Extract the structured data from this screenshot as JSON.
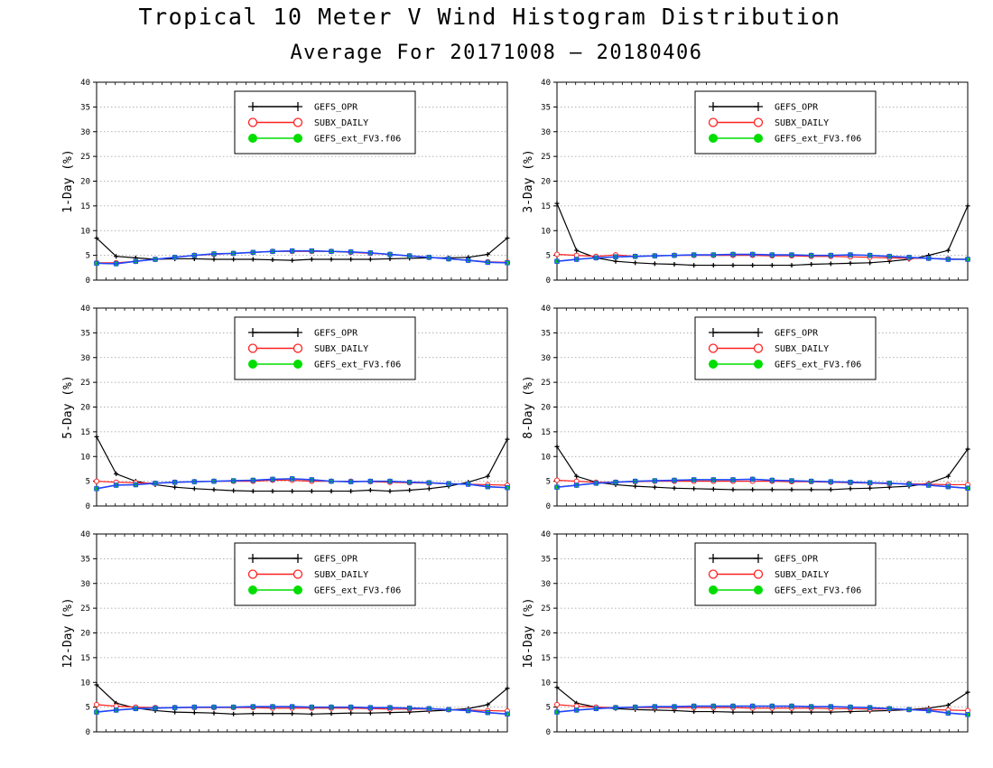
{
  "title": "Tropical 10 Meter V Wind Histogram Distribution",
  "subtitle": "Average For 20171008 – 20180406",
  "colors": {
    "GEFS_OPR": "#000000",
    "SUBX_DAILY": "#ff2020",
    "GEFS_ext_FV3.f06": "#00dd00",
    "overlay_blue": "#2244ff",
    "grid": "#999999"
  },
  "chart_data": [
    {
      "type": "line",
      "ylabel": "1-Day (%)",
      "ylim": [
        0,
        40
      ],
      "yticks": [
        0,
        5,
        10,
        15,
        20,
        25,
        30,
        35,
        40
      ],
      "grid": "horizontal dotted",
      "legend_placement": "top-center",
      "x": [
        1,
        2,
        3,
        4,
        5,
        6,
        7,
        8,
        9,
        10,
        11,
        12,
        13,
        14,
        15,
        16,
        17,
        18,
        19,
        20,
        21,
        22
      ],
      "series": [
        {
          "name": "GEFS_OPR",
          "marker": "plus",
          "values": [
            8.5,
            4.8,
            4.5,
            4.2,
            4.3,
            4.3,
            4.2,
            4.2,
            4.2,
            4.1,
            4.0,
            4.2,
            4.2,
            4.2,
            4.2,
            4.3,
            4.4,
            4.5,
            4.5,
            4.6,
            5.2,
            8.5
          ]
        },
        {
          "name": "SUBX_DAILY",
          "marker": "open-circle",
          "values": [
            3.5,
            3.5,
            3.8,
            4.2,
            4.6,
            5.0,
            5.2,
            5.4,
            5.6,
            5.8,
            5.8,
            5.8,
            5.8,
            5.6,
            5.4,
            5.2,
            4.9,
            4.6,
            4.3,
            4.0,
            3.7,
            3.6
          ]
        },
        {
          "name": "GEFS_ext_FV3.f06",
          "marker": "filled-circle",
          "values": [
            3.4,
            3.3,
            3.8,
            4.2,
            4.6,
            5.0,
            5.3,
            5.4,
            5.6,
            5.8,
            5.9,
            5.9,
            5.8,
            5.7,
            5.5,
            5.2,
            4.9,
            4.6,
            4.3,
            4.0,
            3.6,
            3.5
          ]
        }
      ],
      "overlay": [
        3.4,
        3.3,
        3.8,
        4.2,
        4.6,
        5.0,
        5.3,
        5.4,
        5.6,
        5.8,
        5.9,
        5.9,
        5.8,
        5.7,
        5.5,
        5.2,
        4.9,
        4.6,
        4.3,
        4.0,
        3.6,
        3.5
      ]
    },
    {
      "type": "line",
      "ylabel": "3-Day (%)",
      "ylim": [
        0,
        40
      ],
      "yticks": [
        0,
        5,
        10,
        15,
        20,
        25,
        30,
        35,
        40
      ],
      "grid": "horizontal dotted",
      "legend_placement": "top-center",
      "x": [
        1,
        2,
        3,
        4,
        5,
        6,
        7,
        8,
        9,
        10,
        11,
        12,
        13,
        14,
        15,
        16,
        17,
        18,
        19,
        20,
        21,
        22
      ],
      "series": [
        {
          "name": "GEFS_OPR",
          "marker": "plus",
          "values": [
            15.5,
            6.0,
            4.5,
            3.8,
            3.5,
            3.3,
            3.2,
            3.0,
            3.0,
            3.0,
            3.0,
            3.0,
            3.0,
            3.2,
            3.3,
            3.4,
            3.5,
            3.8,
            4.2,
            5.0,
            6.0,
            15.0
          ]
        },
        {
          "name": "SUBX_DAILY",
          "marker": "open-circle",
          "values": [
            5.2,
            5.0,
            4.8,
            5.1,
            4.8,
            4.9,
            5.0,
            5.0,
            5.0,
            5.0,
            5.0,
            4.9,
            4.9,
            4.8,
            4.8,
            4.7,
            4.6,
            4.5,
            4.4,
            4.4,
            4.3,
            4.2
          ]
        },
        {
          "name": "GEFS_ext_FV3.f06",
          "marker": "filled-circle",
          "values": [
            3.8,
            4.2,
            4.5,
            4.7,
            4.8,
            4.9,
            5.0,
            5.1,
            5.1,
            5.2,
            5.2,
            5.1,
            5.1,
            5.0,
            5.0,
            5.1,
            5.0,
            4.8,
            4.6,
            4.4,
            4.2,
            4.2
          ]
        }
      ],
      "overlay": [
        3.8,
        4.2,
        4.5,
        4.7,
        4.8,
        4.9,
        5.0,
        5.1,
        5.1,
        5.2,
        5.2,
        5.1,
        5.1,
        5.0,
        5.0,
        5.1,
        5.0,
        4.8,
        4.6,
        4.4,
        4.2,
        4.2
      ]
    },
    {
      "type": "line",
      "ylabel": "5-Day (%)",
      "ylim": [
        0,
        40
      ],
      "yticks": [
        0,
        5,
        10,
        15,
        20,
        25,
        30,
        35,
        40
      ],
      "grid": "horizontal dotted",
      "legend_placement": "top-center",
      "x": [
        1,
        2,
        3,
        4,
        5,
        6,
        7,
        8,
        9,
        10,
        11,
        12,
        13,
        14,
        15,
        16,
        17,
        18,
        19,
        20,
        21,
        22
      ],
      "series": [
        {
          "name": "GEFS_OPR",
          "marker": "plus",
          "values": [
            14.0,
            6.5,
            5.0,
            4.3,
            3.8,
            3.5,
            3.3,
            3.1,
            3.0,
            3.0,
            3.0,
            3.0,
            3.0,
            3.0,
            3.2,
            3.0,
            3.2,
            3.5,
            4.0,
            4.8,
            6.0,
            13.5
          ]
        },
        {
          "name": "SUBX_DAILY",
          "marker": "open-circle",
          "values": [
            5.0,
            4.8,
            4.7,
            4.6,
            4.8,
            4.9,
            5.0,
            5.0,
            5.0,
            5.2,
            5.2,
            5.0,
            5.0,
            5.0,
            4.9,
            4.8,
            4.7,
            4.6,
            4.5,
            4.4,
            4.3,
            4.2
          ]
        },
        {
          "name": "GEFS_ext_FV3.f06",
          "marker": "filled-circle",
          "values": [
            3.5,
            4.2,
            4.3,
            4.6,
            4.8,
            4.9,
            5.0,
            5.1,
            5.2,
            5.4,
            5.5,
            5.3,
            5.0,
            4.9,
            5.0,
            5.0,
            4.8,
            4.7,
            4.5,
            4.4,
            3.9,
            3.7
          ]
        }
      ],
      "overlay": [
        3.5,
        4.2,
        4.3,
        4.6,
        4.8,
        4.9,
        5.0,
        5.1,
        5.2,
        5.4,
        5.5,
        5.3,
        5.0,
        4.9,
        5.0,
        5.0,
        4.8,
        4.7,
        4.5,
        4.4,
        3.9,
        3.7
      ]
    },
    {
      "type": "line",
      "ylabel": "8-Day (%)",
      "ylim": [
        0,
        40
      ],
      "yticks": [
        0,
        5,
        10,
        15,
        20,
        25,
        30,
        35,
        40
      ],
      "grid": "horizontal dotted",
      "legend_placement": "top-center",
      "x": [
        1,
        2,
        3,
        4,
        5,
        6,
        7,
        8,
        9,
        10,
        11,
        12,
        13,
        14,
        15,
        16,
        17,
        18,
        19,
        20,
        21,
        22
      ],
      "series": [
        {
          "name": "GEFS_OPR",
          "marker": "plus",
          "values": [
            12.0,
            6.0,
            4.8,
            4.3,
            4.0,
            3.8,
            3.6,
            3.5,
            3.4,
            3.3,
            3.3,
            3.3,
            3.3,
            3.3,
            3.3,
            3.5,
            3.6,
            3.8,
            4.0,
            4.6,
            6.0,
            11.5
          ]
        },
        {
          "name": "SUBX_DAILY",
          "marker": "open-circle",
          "values": [
            5.2,
            5.0,
            4.8,
            4.8,
            4.9,
            5.0,
            5.0,
            5.0,
            5.0,
            5.0,
            5.0,
            5.0,
            4.9,
            4.9,
            4.8,
            4.7,
            4.6,
            4.5,
            4.5,
            4.4,
            4.3,
            4.3
          ]
        },
        {
          "name": "GEFS_ext_FV3.f06",
          "marker": "filled-circle",
          "values": [
            3.8,
            4.2,
            4.6,
            4.8,
            5.0,
            5.1,
            5.2,
            5.3,
            5.3,
            5.3,
            5.4,
            5.2,
            5.1,
            5.0,
            4.9,
            4.8,
            4.7,
            4.6,
            4.4,
            4.2,
            3.9,
            3.6
          ]
        }
      ],
      "overlay": [
        3.8,
        4.2,
        4.6,
        4.8,
        5.0,
        5.1,
        5.2,
        5.3,
        5.3,
        5.3,
        5.4,
        5.2,
        5.1,
        5.0,
        4.9,
        4.8,
        4.7,
        4.6,
        4.4,
        4.2,
        3.9,
        3.6
      ]
    },
    {
      "type": "line",
      "ylabel": "12-Day (%)",
      "ylim": [
        0,
        40
      ],
      "yticks": [
        0,
        5,
        10,
        15,
        20,
        25,
        30,
        35,
        40
      ],
      "grid": "horizontal dotted",
      "legend_placement": "top-center",
      "x": [
        1,
        2,
        3,
        4,
        5,
        6,
        7,
        8,
        9,
        10,
        11,
        12,
        13,
        14,
        15,
        16,
        17,
        18,
        19,
        20,
        21,
        22
      ],
      "series": [
        {
          "name": "GEFS_OPR",
          "marker": "plus",
          "values": [
            9.5,
            5.8,
            4.8,
            4.3,
            4.0,
            3.9,
            3.8,
            3.6,
            3.7,
            3.7,
            3.7,
            3.6,
            3.7,
            3.8,
            3.8,
            3.9,
            4.0,
            4.2,
            4.4,
            4.7,
            5.5,
            8.8
          ]
        },
        {
          "name": "SUBX_DAILY",
          "marker": "open-circle",
          "values": [
            5.5,
            5.2,
            5.0,
            4.9,
            4.9,
            4.9,
            4.9,
            4.9,
            4.9,
            4.8,
            4.8,
            4.8,
            4.8,
            4.8,
            4.7,
            4.6,
            4.6,
            4.6,
            4.5,
            4.4,
            4.3,
            4.2
          ]
        },
        {
          "name": "GEFS_ext_FV3.f06",
          "marker": "filled-circle",
          "values": [
            4.0,
            4.4,
            4.7,
            4.8,
            4.9,
            5.0,
            5.0,
            5.0,
            5.1,
            5.1,
            5.1,
            5.0,
            5.0,
            5.0,
            4.9,
            4.9,
            4.8,
            4.7,
            4.5,
            4.3,
            3.9,
            3.6
          ]
        }
      ],
      "overlay": [
        4.0,
        4.4,
        4.7,
        4.8,
        4.9,
        5.0,
        5.0,
        5.0,
        5.1,
        5.1,
        5.1,
        5.0,
        5.0,
        5.0,
        4.9,
        4.9,
        4.8,
        4.7,
        4.5,
        4.3,
        3.9,
        3.6
      ]
    },
    {
      "type": "line",
      "ylabel": "16-Day (%)",
      "ylim": [
        0,
        40
      ],
      "yticks": [
        0,
        5,
        10,
        15,
        20,
        25,
        30,
        35,
        40
      ],
      "grid": "horizontal dotted",
      "legend_placement": "top-center",
      "x": [
        1,
        2,
        3,
        4,
        5,
        6,
        7,
        8,
        9,
        10,
        11,
        12,
        13,
        14,
        15,
        16,
        17,
        18,
        19,
        20,
        21,
        22
      ],
      "series": [
        {
          "name": "GEFS_OPR",
          "marker": "plus",
          "values": [
            9.0,
            5.8,
            5.0,
            4.7,
            4.5,
            4.4,
            4.3,
            4.1,
            4.1,
            4.0,
            4.0,
            4.0,
            4.0,
            4.0,
            4.0,
            4.1,
            4.2,
            4.3,
            4.5,
            4.8,
            5.4,
            8.0
          ]
        },
        {
          "name": "SUBX_DAILY",
          "marker": "open-circle",
          "values": [
            5.5,
            5.2,
            5.0,
            4.9,
            4.9,
            4.9,
            4.9,
            4.9,
            4.9,
            4.9,
            4.8,
            4.8,
            4.8,
            4.8,
            4.7,
            4.7,
            4.6,
            4.6,
            4.5,
            4.5,
            4.4,
            4.3
          ]
        },
        {
          "name": "GEFS_ext_FV3.f06",
          "marker": "filled-circle",
          "values": [
            4.0,
            4.4,
            4.7,
            4.9,
            5.0,
            5.1,
            5.1,
            5.2,
            5.2,
            5.2,
            5.2,
            5.2,
            5.2,
            5.1,
            5.1,
            5.0,
            4.9,
            4.7,
            4.5,
            4.3,
            3.8,
            3.5
          ]
        }
      ],
      "overlay": [
        4.0,
        4.4,
        4.7,
        4.9,
        5.0,
        5.1,
        5.1,
        5.2,
        5.2,
        5.2,
        5.2,
        5.2,
        5.2,
        5.1,
        5.1,
        5.0,
        4.9,
        4.7,
        4.5,
        4.3,
        3.8,
        3.5
      ]
    }
  ]
}
